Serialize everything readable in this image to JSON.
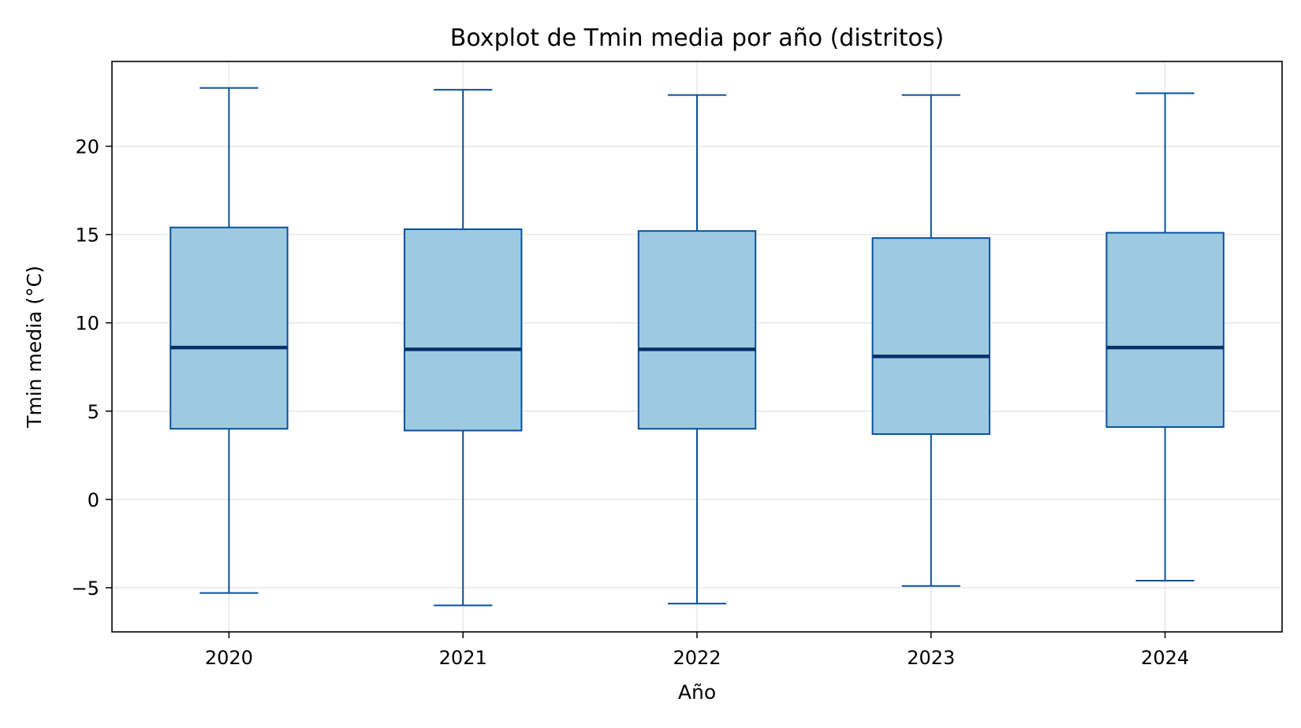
{
  "chart_data": {
    "type": "boxplot",
    "title": "Boxplot de Tmin media por año (distritos)",
    "xlabel": "Año",
    "ylabel": "Tmin media (°C)",
    "categories": [
      "2020",
      "2021",
      "2022",
      "2023",
      "2024"
    ],
    "boxes": [
      {
        "category": "2020",
        "whisker_low": -5.3,
        "q1": 4.0,
        "median": 8.6,
        "q3": 15.4,
        "whisker_high": 23.3
      },
      {
        "category": "2021",
        "whisker_low": -6.0,
        "q1": 3.9,
        "median": 8.5,
        "q3": 15.3,
        "whisker_high": 23.2
      },
      {
        "category": "2022",
        "whisker_low": -5.9,
        "q1": 4.0,
        "median": 8.5,
        "q3": 15.2,
        "whisker_high": 22.9
      },
      {
        "category": "2023",
        "whisker_low": -4.9,
        "q1": 3.7,
        "median": 8.1,
        "q3": 14.8,
        "whisker_high": 22.9
      },
      {
        "category": "2024",
        "whisker_low": -4.6,
        "q1": 4.1,
        "median": 8.6,
        "q3": 15.1,
        "whisker_high": 23.0
      }
    ],
    "yticks": [
      -5,
      0,
      5,
      10,
      15,
      20
    ],
    "ytick_labels": [
      "−5",
      "0",
      "5",
      "10",
      "15",
      "20"
    ],
    "ylim": [
      -7.5,
      24.8
    ],
    "grid": true,
    "colors": {
      "box_fill": "#9ecae1",
      "box_edge": "#08519c",
      "median": "#08306b",
      "grid": "#e8e8e8",
      "axes": "#000000"
    }
  }
}
